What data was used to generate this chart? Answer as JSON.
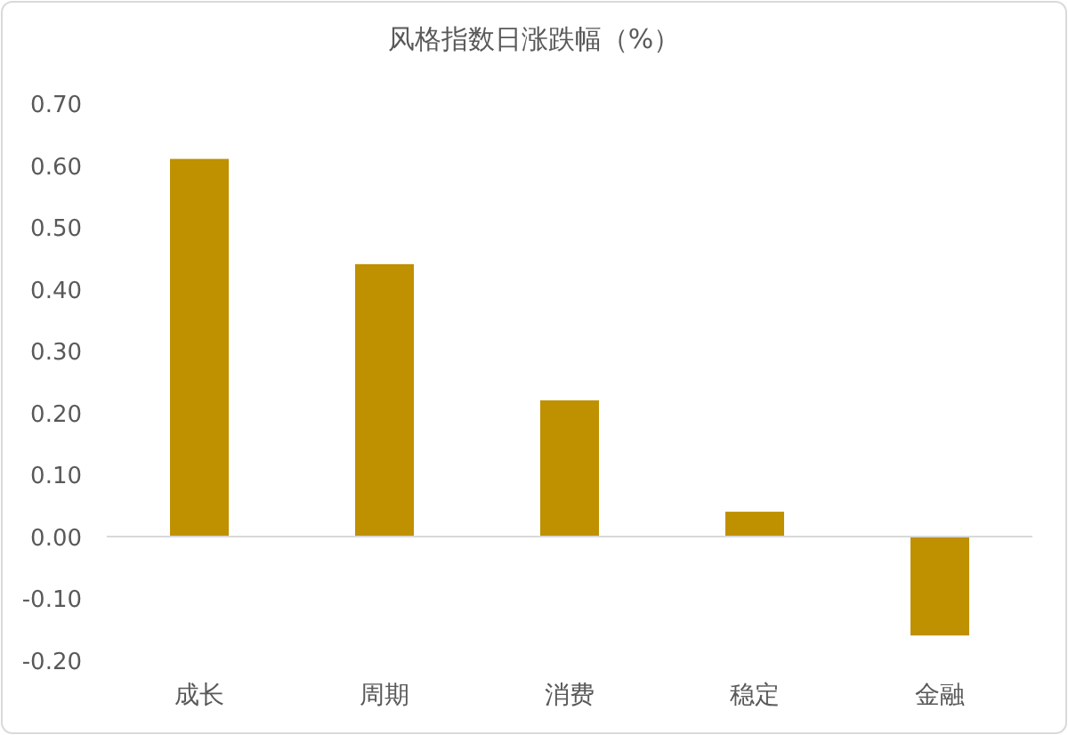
{
  "chart_data": {
    "type": "bar",
    "title": "风格指数日涨跌幅（%）",
    "categories": [
      "成长",
      "周期",
      "消费",
      "稳定",
      "金融"
    ],
    "values": [
      0.61,
      0.44,
      0.22,
      0.04,
      -0.16
    ],
    "color": "#bf9000",
    "ylim": [
      -0.2,
      0.7
    ],
    "yticks": [
      {
        "value": -0.2,
        "label": "-0.20"
      },
      {
        "value": -0.1,
        "label": "-0.10"
      },
      {
        "value": 0,
        "label": "0.00"
      },
      {
        "value": 0.1,
        "label": "0.10"
      },
      {
        "value": 0.2,
        "label": "0.20"
      },
      {
        "value": 0.3,
        "label": "0.30"
      },
      {
        "value": 0.4,
        "label": "0.40"
      },
      {
        "value": 0.5,
        "label": "0.50"
      },
      {
        "value": 0.6,
        "label": "0.60"
      },
      {
        "value": 0.7,
        "label": "0.70"
      }
    ]
  }
}
